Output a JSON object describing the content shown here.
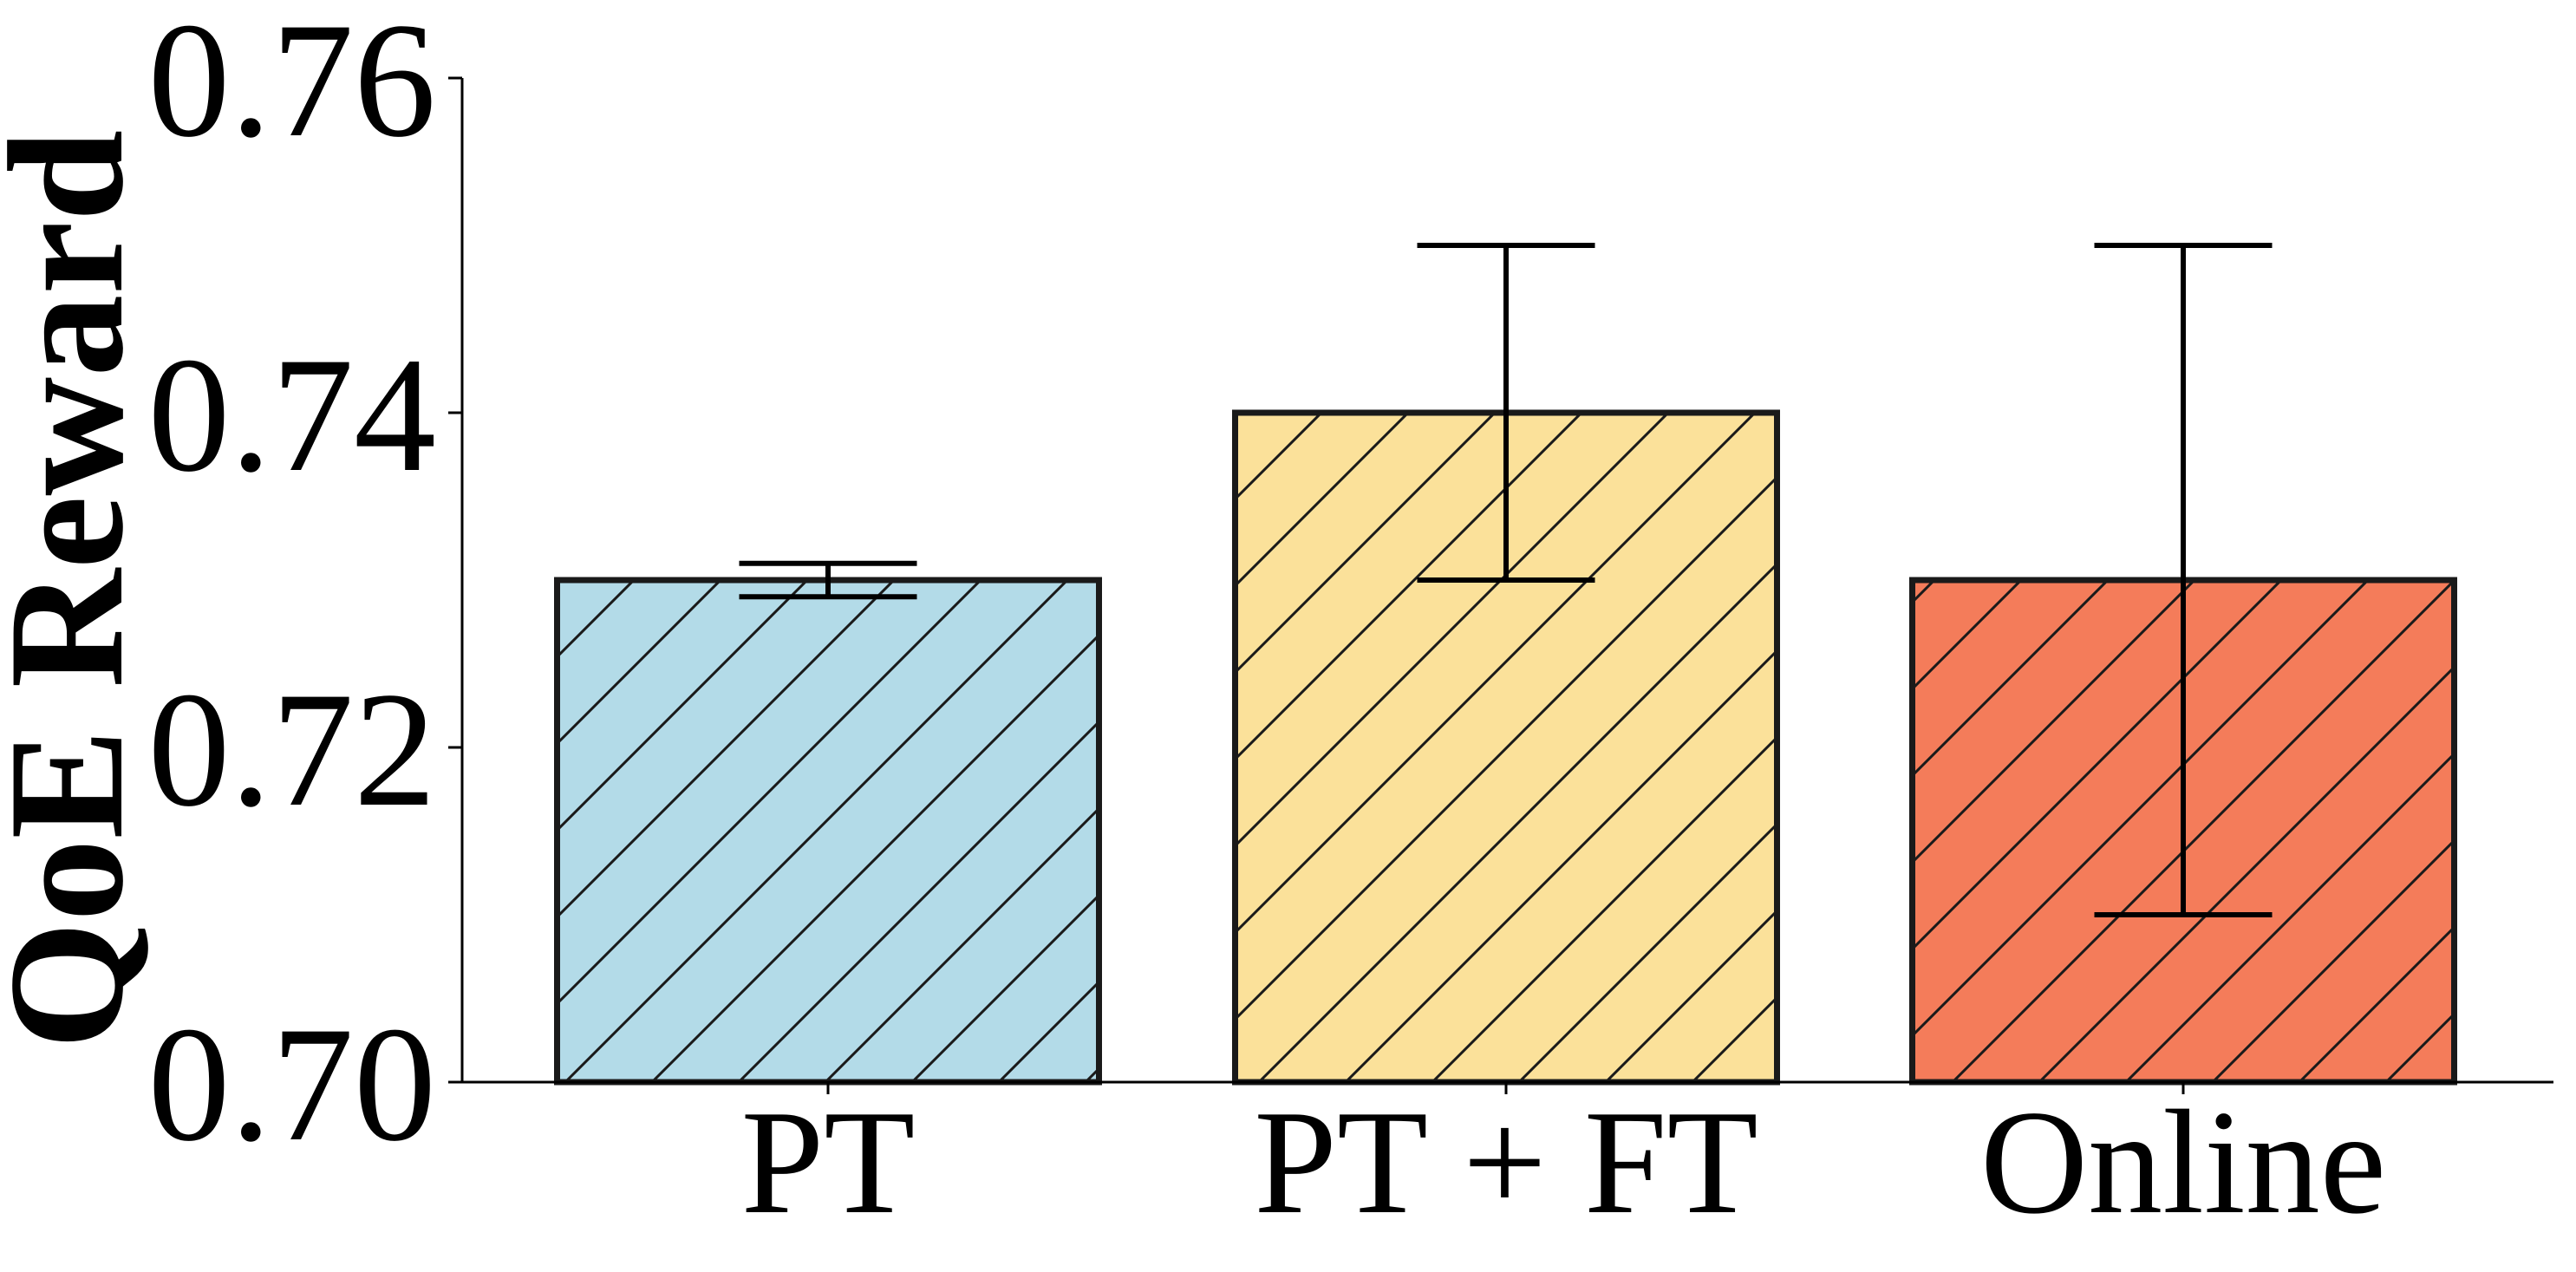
{
  "chart_data": {
    "type": "bar",
    "title": "",
    "xlabel": "",
    "ylabel": "QoE Reward",
    "ylim": [
      0.7,
      0.76
    ],
    "yticks": [
      "0.70",
      "0.72",
      "0.74",
      "0.76"
    ],
    "categories": [
      "PT",
      "PT + FT",
      "Online"
    ],
    "values": [
      0.73,
      0.74,
      0.73
    ],
    "error_bars": [
      {
        "low": 0.729,
        "high": 0.731
      },
      {
        "low": 0.73,
        "high": 0.75
      },
      {
        "low": 0.71,
        "high": 0.75
      }
    ],
    "colors": [
      "#b3dbe8",
      "#fbe19a",
      "#f47c5a"
    ],
    "hatch": "diagonal",
    "grid": false,
    "legend": "none"
  }
}
